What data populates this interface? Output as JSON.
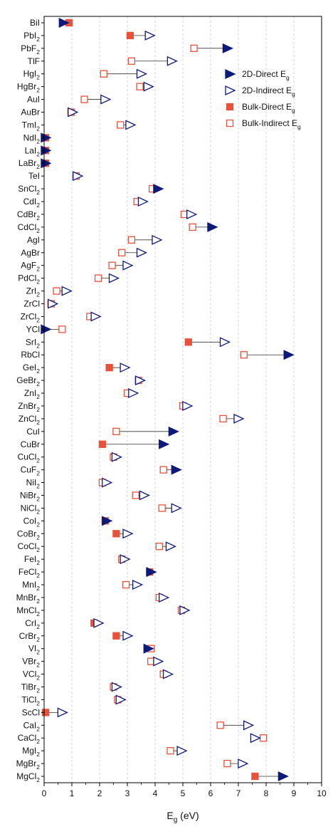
{
  "chart_data": {
    "type": "scatter",
    "xlabel_main": "E",
    "xlabel_sub": "g",
    "xlabel_unit": " (eV)",
    "xlim": [
      0,
      10
    ],
    "xticks": [
      0,
      1,
      2,
      3,
      4,
      5,
      6,
      7,
      8,
      9,
      10
    ],
    "grid": "vertical dashed",
    "legend_position": "top-right",
    "legend": [
      {
        "key": "d2",
        "main": "2D-Direct E",
        "sub": "g",
        "marker": "filled-triangle",
        "color": "#0d1a7a"
      },
      {
        "key": "i2",
        "main": "2D-Indirect E",
        "sub": "g",
        "marker": "open-triangle",
        "color": "#0d1a7a"
      },
      {
        "key": "db",
        "main": "Bulk-Direct E",
        "sub": "g",
        "marker": "filled-square",
        "color": "#e8513a"
      },
      {
        "key": "ib",
        "main": "Bulk-Indirect E",
        "sub": "g",
        "marker": "open-square",
        "color": "#e8513a"
      }
    ],
    "rows": [
      {
        "base": "BiI",
        "sub": "",
        "d2": 0.7,
        "db": 0.9
      },
      {
        "base": "PbI",
        "sub": "2",
        "i2": 3.8,
        "db": 3.1
      },
      {
        "base": "PbF",
        "sub": "2",
        "d2": 6.6,
        "ib": 5.4
      },
      {
        "base": "TlF",
        "sub": "",
        "i2": 4.6,
        "ib": 3.15
      },
      {
        "base": "HgI",
        "sub": "2",
        "i2": 3.5,
        "ib": 2.15
      },
      {
        "base": "HgBr",
        "sub": "2",
        "i2": 3.75,
        "ib": 3.45
      },
      {
        "base": "AuI",
        "sub": "",
        "i2": 2.2,
        "ib": 1.45
      },
      {
        "base": "AuBr",
        "sub": "",
        "i2": 1.02,
        "ib": 0.97
      },
      {
        "base": "TmI",
        "sub": "2",
        "i2": 3.1,
        "ib": 2.75
      },
      {
        "base": "NdI",
        "sub": "2",
        "d2": 0.05,
        "db": 0.05
      },
      {
        "base": "LaI",
        "sub": "2",
        "d2": 0.05,
        "db": 0.05
      },
      {
        "base": "LaBr",
        "sub": "2",
        "d2": 0.05,
        "db": 0.05
      },
      {
        "base": "TeI",
        "sub": "",
        "i2": 1.2,
        "ib": 1.15
      },
      {
        "base": "SnCl",
        "sub": "2",
        "d2": 4.1,
        "ib": 3.9
      },
      {
        "base": "CdI",
        "sub": "2",
        "i2": 3.55,
        "ib": 3.35
      },
      {
        "base": "CdBr",
        "sub": "2",
        "i2": 5.3,
        "ib": 5.05
      },
      {
        "base": "CdCl",
        "sub": "2",
        "d2": 6.05,
        "ib": 5.35
      },
      {
        "base": "AgI",
        "sub": "",
        "i2": 4.05,
        "ib": 3.15
      },
      {
        "base": "AgBr",
        "sub": "",
        "i2": 3.5,
        "ib": 2.8
      },
      {
        "base": "AgF",
        "sub": "2",
        "i2": 3.0,
        "ib": 2.45
      },
      {
        "base": "PdCl",
        "sub": "2",
        "i2": 2.5,
        "ib": 1.95
      },
      {
        "base": "ZrI",
        "sub": "2",
        "i2": 0.8,
        "ib": 0.45
      },
      {
        "base": "ZrCl",
        "sub": "",
        "i2": 0.3,
        "ib": 0.25
      },
      {
        "base": "ZrCl",
        "sub": "2",
        "i2": 1.85,
        "ib": 1.65
      },
      {
        "base": "YCl",
        "sub": "",
        "d2": 0.05,
        "ib": 0.65
      },
      {
        "base": "SrI",
        "sub": "2",
        "i2": 6.5,
        "db": 5.2
      },
      {
        "base": "RbCl",
        "sub": "",
        "d2": 8.8,
        "ib": 7.2
      },
      {
        "base": "GeI",
        "sub": "2",
        "i2": 2.9,
        "db": 2.35
      },
      {
        "base": "GeBr",
        "sub": "2",
        "i2": 3.45,
        "ib": 3.4
      },
      {
        "base": "ZnI",
        "sub": "2",
        "i2": 3.2,
        "ib": 3.0
      },
      {
        "base": "ZnBr",
        "sub": "2",
        "i2": 5.15,
        "ib": 5.0
      },
      {
        "base": "ZnCl",
        "sub": "2",
        "i2": 7.0,
        "ib": 6.45
      },
      {
        "base": "CuI",
        "sub": "",
        "d2": 4.65,
        "ib": 2.6
      },
      {
        "base": "CuBr",
        "sub": "",
        "d2": 4.3,
        "db": 2.1
      },
      {
        "base": "CuCl",
        "sub": "2",
        "i2": 2.6,
        "ib": 2.5
      },
      {
        "base": "CuF",
        "sub": "2",
        "d2": 4.75,
        "ib": 4.3
      },
      {
        "base": "NiI",
        "sub": "2",
        "i2": 2.25,
        "ib": 2.1
      },
      {
        "base": "NiBr",
        "sub": "2",
        "i2": 3.6,
        "ib": 3.3
      },
      {
        "base": "NiCl",
        "sub": "2",
        "i2": 4.75,
        "ib": 4.25
      },
      {
        "base": "CoI",
        "sub": "2",
        "d2": 2.25,
        "db": 2.2
      },
      {
        "base": "CoBr",
        "sub": "2",
        "i2": 3.0,
        "db": 2.6
      },
      {
        "base": "CoCl",
        "sub": "2",
        "i2": 4.55,
        "ib": 4.15
      },
      {
        "base": "FeI",
        "sub": "2",
        "i2": 2.9,
        "ib": 2.8
      },
      {
        "base": "FeCl",
        "sub": "2",
        "d2": 3.85,
        "db": 3.8
      },
      {
        "base": "MnI",
        "sub": "2",
        "i2": 3.35,
        "ib": 2.95
      },
      {
        "base": "MnBr",
        "sub": "2",
        "i2": 4.3,
        "ib": 4.15
      },
      {
        "base": "MnCl",
        "sub": "2",
        "i2": 5.05,
        "ib": 4.95
      },
      {
        "base": "CrI",
        "sub": "2",
        "i2": 1.95,
        "db": 1.8
      },
      {
        "base": "CrBr",
        "sub": "2",
        "i2": 3.0,
        "db": 2.6
      },
      {
        "base": "VI",
        "sub": "2",
        "d2": 3.75,
        "ib": 3.85
      },
      {
        "base": "VBr",
        "sub": "2",
        "i2": 4.1,
        "ib": 3.85
      },
      {
        "base": "VCl",
        "sub": "2",
        "i2": 4.45,
        "ib": 4.3
      },
      {
        "base": "TiBr",
        "sub": "2",
        "i2": 2.6,
        "ib": 2.5
      },
      {
        "base": "TiCl",
        "sub": "2",
        "i2": 2.75,
        "ib": 2.65
      },
      {
        "base": "ScCl",
        "sub": "",
        "i2": 0.65,
        "db": 0.05
      },
      {
        "base": "CaI",
        "sub": "2",
        "i2": 7.35,
        "ib": 6.35
      },
      {
        "base": "CaCl",
        "sub": "2",
        "i2": 7.6,
        "ib": 7.9
      },
      {
        "base": "MgI",
        "sub": "2",
        "i2": 4.95,
        "ib": 4.55
      },
      {
        "base": "MgBr",
        "sub": "2",
        "i2": 7.15,
        "ib": 6.6
      },
      {
        "base": "MgCl",
        "sub": "2",
        "d2": 8.6,
        "db": 7.6
      }
    ]
  }
}
